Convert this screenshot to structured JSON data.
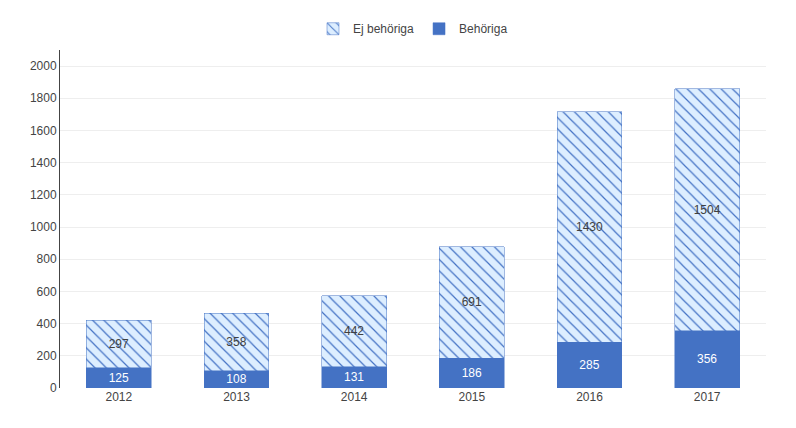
{
  "chart_data": {
    "type": "bar",
    "stacked": true,
    "categories": [
      "2012",
      "2013",
      "2014",
      "2015",
      "2016",
      "2017"
    ],
    "series": [
      {
        "name": "Behöriga",
        "color": "#4472C4",
        "values": [
          125,
          108,
          131,
          186,
          285,
          356
        ]
      },
      {
        "name": "Ej behöriga",
        "color": "#DDEEFF",
        "values": [
          297,
          358,
          442,
          691,
          1430,
          1504
        ]
      }
    ],
    "ylim": [
      0,
      2100
    ],
    "yticks": [
      0,
      200,
      400,
      600,
      800,
      1000,
      1200,
      1400,
      1600,
      1800,
      2000
    ],
    "grid": true,
    "legend": "top",
    "data_labels": true
  }
}
